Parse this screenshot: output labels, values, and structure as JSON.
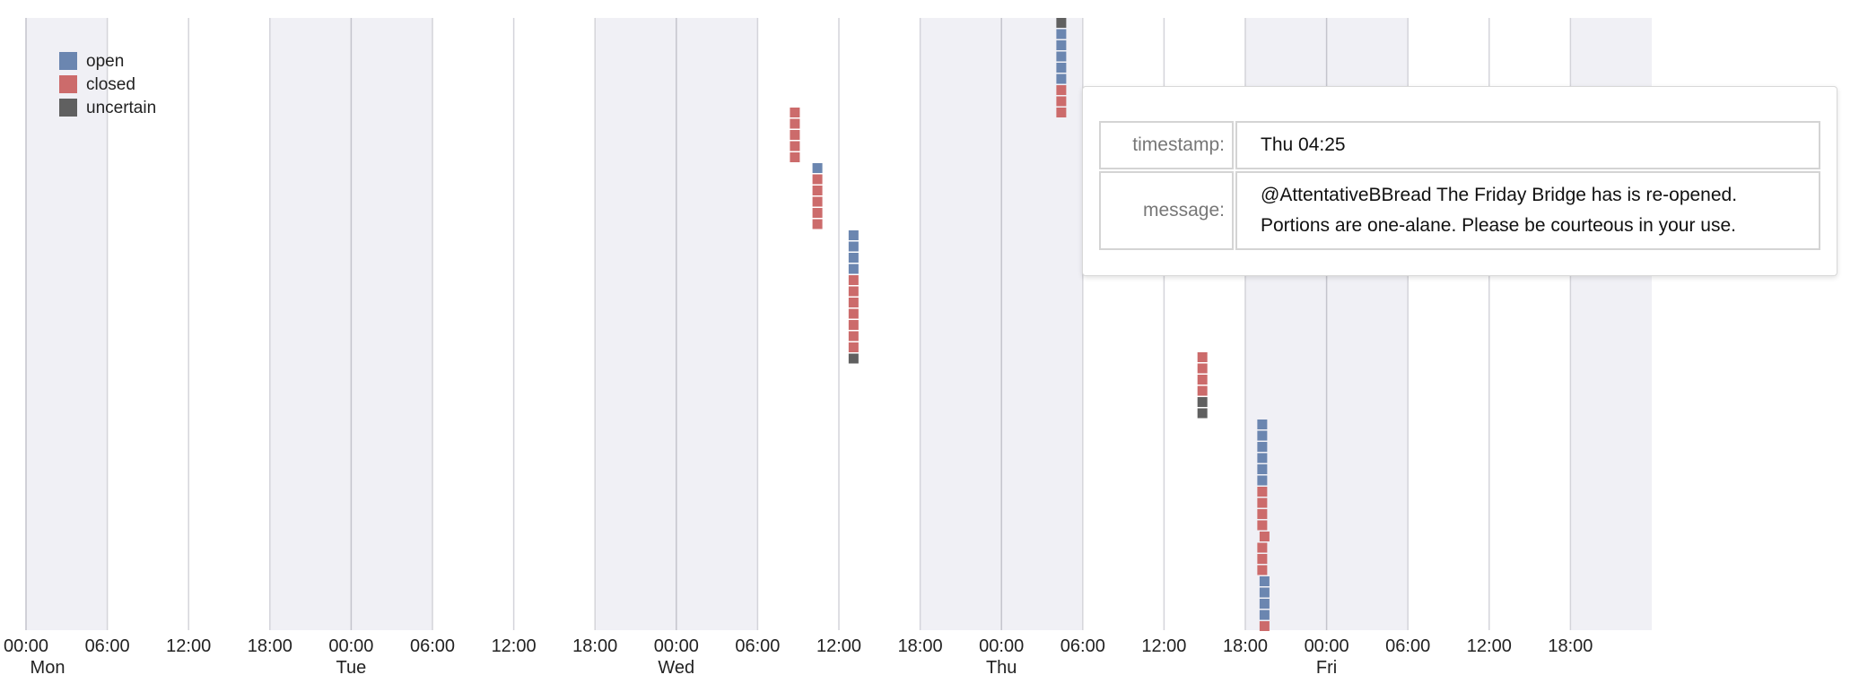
{
  "chart_data": {
    "type": "scatter",
    "x_axis": {
      "range": [
        "Mon 00:00",
        "Sat 00:00"
      ],
      "tick_labels": [
        "00:00",
        "06:00",
        "12:00",
        "18:00",
        "00:00",
        "06:00",
        "12:00",
        "18:00",
        "00:00",
        "06:00",
        "12:00",
        "18:00",
        "00:00",
        "06:00",
        "12:00",
        "18:00",
        "00:00",
        "06:00",
        "12:00",
        "18:00"
      ],
      "day_labels": [
        "Mon",
        "Tue",
        "Wed",
        "Thu",
        "Fri"
      ],
      "shaded_night": [
        "18:00-06:00"
      ]
    },
    "legend": {
      "placement": "top-left",
      "entries": [
        {
          "name": "open",
          "color": "#6b86b0"
        },
        {
          "name": "closed",
          "color": "#cc6b6b"
        },
        {
          "name": "uncertain",
          "color": "#606060"
        }
      ]
    },
    "points": [
      {
        "time": "Wed 08:45",
        "state": "closed"
      },
      {
        "time": "Wed 08:45",
        "state": "closed"
      },
      {
        "time": "Wed 08:45",
        "state": "closed"
      },
      {
        "time": "Wed 08:45",
        "state": "closed"
      },
      {
        "time": "Wed 08:45",
        "state": "closed"
      },
      {
        "time": "Wed 10:25",
        "state": "open"
      },
      {
        "time": "Wed 10:25",
        "state": "closed"
      },
      {
        "time": "Wed 10:25",
        "state": "closed"
      },
      {
        "time": "Wed 10:25",
        "state": "closed"
      },
      {
        "time": "Wed 10:25",
        "state": "closed"
      },
      {
        "time": "Wed 10:25",
        "state": "closed"
      },
      {
        "time": "Wed 13:05",
        "state": "open"
      },
      {
        "time": "Wed 13:05",
        "state": "open"
      },
      {
        "time": "Wed 13:05",
        "state": "open"
      },
      {
        "time": "Wed 13:05",
        "state": "open"
      },
      {
        "time": "Wed 13:05",
        "state": "closed"
      },
      {
        "time": "Wed 13:05",
        "state": "closed"
      },
      {
        "time": "Wed 13:05",
        "state": "closed"
      },
      {
        "time": "Wed 13:05",
        "state": "closed"
      },
      {
        "time": "Wed 13:05",
        "state": "closed"
      },
      {
        "time": "Wed 13:05",
        "state": "closed"
      },
      {
        "time": "Wed 13:05",
        "state": "closed"
      },
      {
        "time": "Wed 13:05",
        "state": "uncertain"
      },
      {
        "time": "Thu 04:25",
        "state": "uncertain"
      },
      {
        "time": "Thu 04:25",
        "state": "open"
      },
      {
        "time": "Thu 04:25",
        "state": "open"
      },
      {
        "time": "Thu 04:25",
        "state": "open"
      },
      {
        "time": "Thu 04:25",
        "state": "open"
      },
      {
        "time": "Thu 04:25",
        "state": "open"
      },
      {
        "time": "Thu 04:25",
        "state": "closed"
      },
      {
        "time": "Thu 04:25",
        "state": "closed"
      },
      {
        "time": "Thu 04:25",
        "state": "closed"
      },
      {
        "time": "Thu 14:50",
        "state": "closed"
      },
      {
        "time": "Thu 14:50",
        "state": "closed"
      },
      {
        "time": "Thu 14:50",
        "state": "closed"
      },
      {
        "time": "Thu 14:50",
        "state": "closed"
      },
      {
        "time": "Thu 14:50",
        "state": "uncertain"
      },
      {
        "time": "Thu 14:50",
        "state": "uncertain"
      },
      {
        "time": "Thu 19:15",
        "state": "open"
      },
      {
        "time": "Thu 19:15",
        "state": "open"
      },
      {
        "time": "Thu 19:15",
        "state": "open"
      },
      {
        "time": "Thu 19:15",
        "state": "open"
      },
      {
        "time": "Thu 19:15",
        "state": "open"
      },
      {
        "time": "Thu 19:15",
        "state": "open"
      },
      {
        "time": "Thu 19:15",
        "state": "closed"
      },
      {
        "time": "Thu 19:15",
        "state": "closed"
      },
      {
        "time": "Thu 19:15",
        "state": "closed"
      },
      {
        "time": "Thu 19:15",
        "state": "closed"
      },
      {
        "time": "Thu 19:25",
        "state": "closed"
      },
      {
        "time": "Thu 19:15",
        "state": "closed"
      },
      {
        "time": "Thu 19:15",
        "state": "closed"
      },
      {
        "time": "Thu 19:15",
        "state": "closed"
      },
      {
        "time": "Thu 19:25",
        "state": "open"
      },
      {
        "time": "Thu 19:25",
        "state": "open"
      },
      {
        "time": "Thu 19:25",
        "state": "open"
      },
      {
        "time": "Thu 19:25",
        "state": "open"
      },
      {
        "time": "Thu 19:25",
        "state": "closed"
      }
    ]
  },
  "tooltip": {
    "timestamp_label": "timestamp:",
    "timestamp_value": "Thu 04:25",
    "message_label": "message:",
    "message_value": "@AttentativeBBread The Friday Bridge has is re-opened. Portions are one-alane. Please be courteous in your use."
  }
}
